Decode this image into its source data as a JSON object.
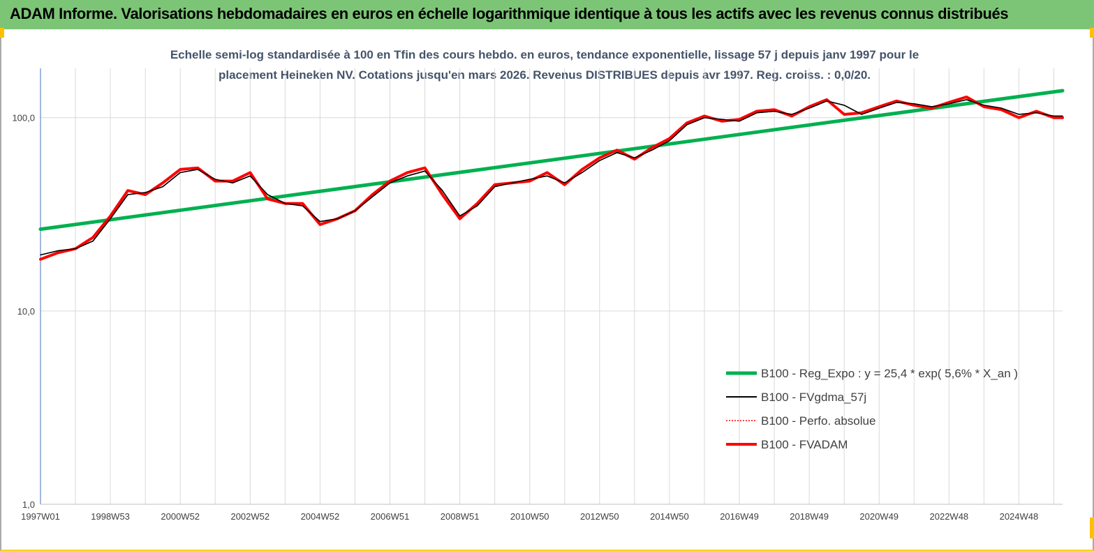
{
  "banner": {
    "title": "ADAM Informe. Valorisations hebdomadaires en euros en échelle logarithmique identique à tous les actifs avec les revenus connus distribués",
    "color": "#7cc576"
  },
  "chart_data": {
    "type": "line",
    "title_line1": "Echelle semi-log standardisée à 100 en Tfin des cours hebdo. en euros, tendance exponentielle, lissage 57 j depuis janv 1997 pour le",
    "title_line2": "placement Heineken NV. Cotations jusqu'en mars 2026. Revenus DISTRIBUES depuis avr 1997. Reg. croiss. : 0,0/20.",
    "yscale": "log",
    "ylim": [
      1,
      180
    ],
    "yticks": [
      {
        "value": 1,
        "label": "1,0"
      },
      {
        "value": 10,
        "label": "10,0"
      },
      {
        "value": 100,
        "label": "100,0"
      }
    ],
    "xlim": [
      1997.0,
      2026.25
    ],
    "xticks": [
      {
        "value": 1997.0,
        "label": "1997W01"
      },
      {
        "value": 1999.0,
        "label": "1998W53"
      },
      {
        "value": 2001.0,
        "label": "2000W52"
      },
      {
        "value": 2003.0,
        "label": "2002W52"
      },
      {
        "value": 2005.0,
        "label": "2004W52"
      },
      {
        "value": 2007.0,
        "label": "2006W51"
      },
      {
        "value": 2009.0,
        "label": "2008W51"
      },
      {
        "value": 2011.0,
        "label": "2010W50"
      },
      {
        "value": 2013.0,
        "label": "2012W50"
      },
      {
        "value": 2015.0,
        "label": "2014W50"
      },
      {
        "value": 2017.0,
        "label": "2016W49"
      },
      {
        "value": 2019.0,
        "label": "2018W49"
      },
      {
        "value": 2021.0,
        "label": "2020W49"
      },
      {
        "value": 2023.0,
        "label": "2022W48"
      },
      {
        "value": 2025.0,
        "label": "2024W48"
      }
    ],
    "grid": "vertical",
    "legend_position": "bottom-right",
    "series": [
      {
        "name": "B100 - Reg_Expo : y = 25,4 * exp( 5,6% *  X_an )",
        "color": "#00b050",
        "style": "solid",
        "x": [
          1997.0,
          2026.25
        ],
        "y": [
          26.5,
          138
        ]
      },
      {
        "name": "B100 - FVgdma_57j",
        "color": "#000000",
        "style": "solid",
        "x": [
          1997.0,
          1997.5,
          1998.0,
          1998.5,
          1999.0,
          1999.5,
          2000.0,
          2000.5,
          2001.0,
          2001.5,
          2002.0,
          2002.5,
          2003.0,
          2003.5,
          2004.0,
          2004.5,
          2005.0,
          2005.5,
          2006.0,
          2006.5,
          2007.0,
          2007.5,
          2008.0,
          2008.5,
          2009.0,
          2009.5,
          2010.0,
          2010.5,
          2011.0,
          2011.5,
          2012.0,
          2012.5,
          2013.0,
          2013.5,
          2014.0,
          2014.5,
          2015.0,
          2015.5,
          2016.0,
          2016.5,
          2017.0,
          2017.5,
          2018.0,
          2018.5,
          2019.0,
          2019.5,
          2020.0,
          2020.5,
          2021.0,
          2021.5,
          2022.0,
          2022.5,
          2023.0,
          2023.5,
          2024.0,
          2024.5,
          2025.0,
          2025.5,
          2026.0,
          2026.25
        ],
        "y": [
          19.5,
          20.5,
          21,
          23,
          30,
          40,
          41,
          44,
          52,
          54,
          48,
          46,
          50,
          40,
          36,
          35,
          29,
          30,
          33,
          39,
          46,
          50,
          53,
          42,
          31,
          35,
          44,
          46,
          48,
          50,
          46,
          52,
          60,
          66,
          62,
          68,
          76,
          92,
          100,
          98,
          96,
          106,
          108,
          104,
          112,
          122,
          116,
          104,
          112,
          120,
          118,
          114,
          118,
          124,
          116,
          112,
          104,
          106,
          102,
          102
        ]
      },
      {
        "name": "B100 - Perfo. absolue",
        "color": "#ff0000",
        "style": "dotted",
        "x": [
          1997.0,
          1997.5,
          1998.0,
          1998.5,
          1999.0,
          1999.5,
          2000.0,
          2000.5,
          2001.0,
          2001.5,
          2002.0,
          2002.5,
          2003.0,
          2003.5,
          2004.0,
          2004.5,
          2005.0,
          2005.5,
          2006.0,
          2006.5,
          2007.0,
          2007.5,
          2008.0,
          2008.5,
          2009.0,
          2009.5,
          2010.0,
          2010.5,
          2011.0,
          2011.5,
          2012.0,
          2012.5,
          2013.0,
          2013.5,
          2014.0,
          2014.5,
          2015.0,
          2015.5,
          2016.0,
          2016.5,
          2017.0,
          2017.5,
          2018.0,
          2018.5,
          2019.0,
          2019.5,
          2020.0,
          2020.5,
          2021.0,
          2021.5,
          2022.0,
          2022.5,
          2023.0,
          2023.5,
          2024.0,
          2024.5,
          2025.0,
          2025.5,
          2026.0,
          2026.25
        ],
        "y": [
          18.5,
          20,
          21,
          24,
          31,
          42,
          40,
          46,
          54,
          55,
          47,
          47,
          52,
          38,
          36,
          36,
          28,
          30,
          33,
          40,
          47,
          52,
          55,
          40,
          30,
          36,
          45,
          46,
          47,
          52,
          45,
          54,
          62,
          68,
          61,
          70,
          78,
          94,
          102,
          96,
          98,
          108,
          110,
          102,
          114,
          124,
          104,
          106,
          114,
          122,
          116,
          112,
          120,
          128,
          114,
          110,
          100,
          108,
          100,
          100
        ]
      },
      {
        "name": "B100 - FVADAM",
        "color": "#ff0000",
        "style": "solid",
        "x": [
          1997.0,
          1997.5,
          1998.0,
          1998.5,
          1999.0,
          1999.5,
          2000.0,
          2000.5,
          2001.0,
          2001.5,
          2002.0,
          2002.5,
          2003.0,
          2003.5,
          2004.0,
          2004.5,
          2005.0,
          2005.5,
          2006.0,
          2006.5,
          2007.0,
          2007.5,
          2008.0,
          2008.5,
          2009.0,
          2009.5,
          2010.0,
          2010.5,
          2011.0,
          2011.5,
          2012.0,
          2012.5,
          2013.0,
          2013.5,
          2014.0,
          2014.5,
          2015.0,
          2015.5,
          2016.0,
          2016.5,
          2017.0,
          2017.5,
          2018.0,
          2018.5,
          2019.0,
          2019.5,
          2020.0,
          2020.5,
          2021.0,
          2021.5,
          2022.0,
          2022.5,
          2023.0,
          2023.5,
          2024.0,
          2024.5,
          2025.0,
          2025.5,
          2026.0,
          2026.25
        ],
        "y": [
          18.5,
          20,
          21,
          24,
          31,
          42,
          40,
          46,
          54,
          55,
          47,
          47,
          52,
          38,
          36,
          36,
          28,
          30,
          33,
          40,
          47,
          52,
          55,
          40,
          30,
          36,
          45,
          46,
          47,
          52,
          45,
          54,
          62,
          68,
          61,
          70,
          78,
          94,
          102,
          96,
          98,
          108,
          110,
          102,
          114,
          124,
          104,
          106,
          114,
          122,
          116,
          112,
          120,
          128,
          114,
          110,
          100,
          108,
          100,
          100
        ]
      }
    ]
  }
}
